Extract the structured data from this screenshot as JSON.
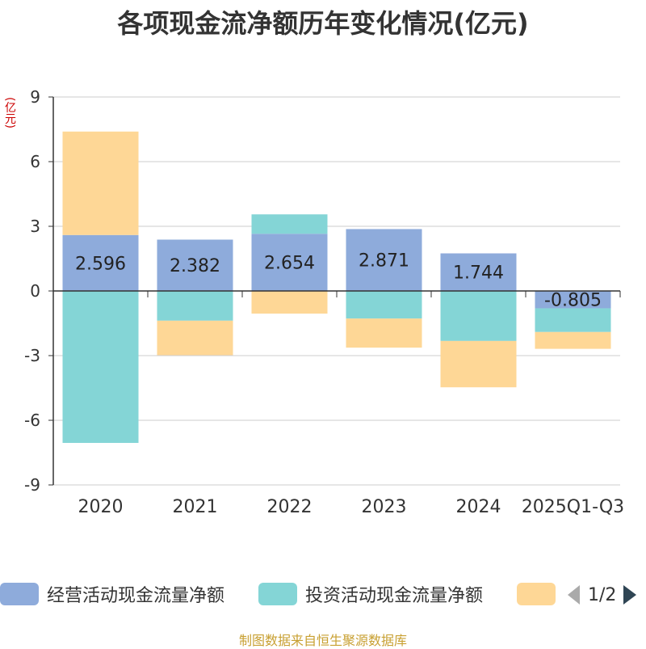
{
  "page": {
    "title": "各项现金流净额历年变化情况(亿元)",
    "unit_label": "(亿元)",
    "footer": "制图数据来自恒生聚源数据库"
  },
  "legend": {
    "items": [
      {
        "label": "经营活动现金流量净额",
        "color": "#8eabdb"
      },
      {
        "label": "投资活动现金流量净额",
        "color": "#84d5d6"
      },
      {
        "label": "",
        "color": "#fed796"
      }
    ],
    "page_indicator": "1/2",
    "prev_icon": "triangle-left-icon",
    "next_icon": "triangle-right-icon"
  },
  "chart_data": {
    "type": "bar",
    "stacked": true,
    "categories": [
      "2020",
      "2021",
      "2022",
      "2023",
      "2024",
      "2025Q1-Q3"
    ],
    "series": [
      {
        "name": "经营活动现金流量净额",
        "color": "#8eabdb",
        "values": [
          2.596,
          2.382,
          2.654,
          2.871,
          1.744,
          -0.805
        ]
      },
      {
        "name": "投资活动现金流量净额",
        "color": "#84d5d6",
        "values": [
          -7.05,
          -1.38,
          0.9,
          -1.28,
          -2.32,
          -1.1
        ]
      },
      {
        "name": "",
        "color": "#fed796",
        "values": [
          4.8,
          -1.6,
          -1.05,
          -1.35,
          -2.15,
          -0.78
        ]
      }
    ],
    "data_labels": [
      "2.596",
      "2.382",
      "2.654",
      "2.871",
      "1.744",
      "-0.805"
    ],
    "yticks": [
      "9",
      "6",
      "3",
      "0",
      "-3",
      "-6",
      "-9"
    ],
    "ylim": [
      -9,
      9
    ],
    "ylabel": "(亿元)",
    "grid": true
  }
}
